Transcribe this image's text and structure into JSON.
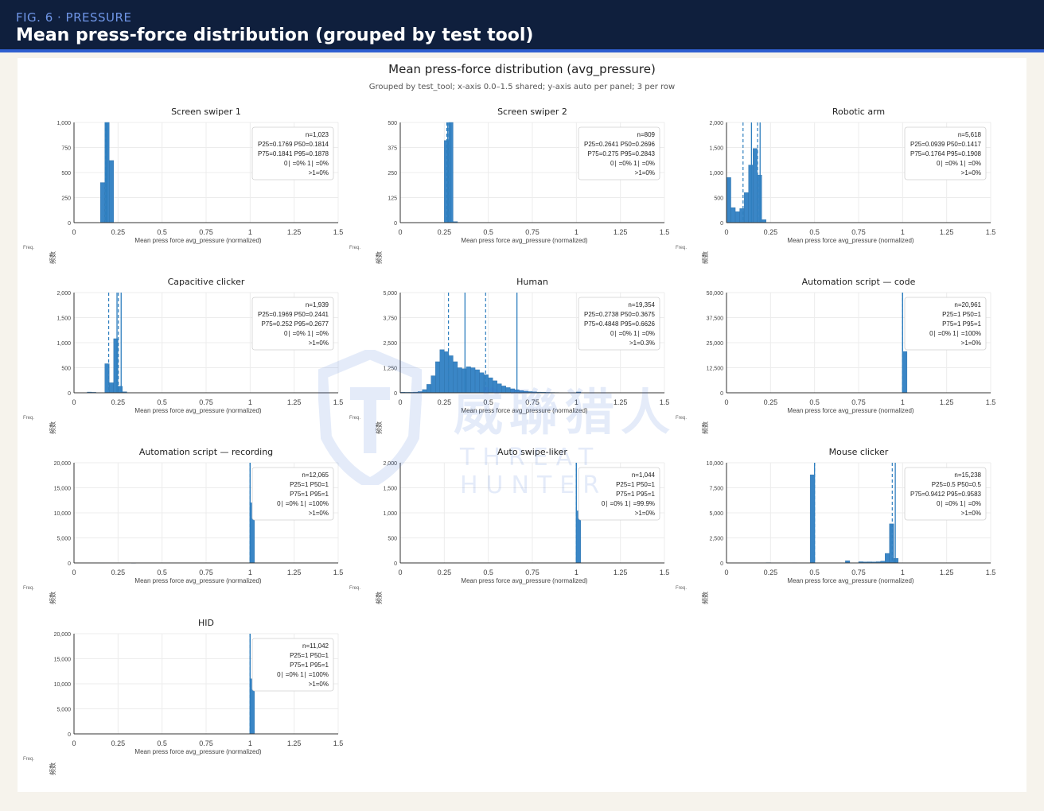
{
  "header": {
    "fig_label": "FIG. 6 · PRESSURE",
    "title": "Mean press-force distribution (grouped by test tool)"
  },
  "chart_title": "Mean press-force distribution (avg_pressure)",
  "chart_subtitle": "Grouped by test_tool; x-axis 0.0–1.5 shared; y-axis auto per panel; 3 per row",
  "watermark": {
    "cn": "威聯猎人",
    "en": "THREAT HUNTER"
  },
  "colors": {
    "bar": "#3a86c6",
    "bar_stroke": "#2a6ea8",
    "quantile_line": "#2f7fbf",
    "header_bg": "#0f1f3d",
    "accent": "#2f5fd0"
  },
  "chart_data": [
    {
      "type": "bar",
      "title": "Screen swiper 1",
      "xlabel": "Mean press force avg_pressure (normalized)",
      "ylabel": "频数",
      "ylabel_en": "Freq.",
      "xlim": [
        0,
        1.5
      ],
      "ylim": [
        0,
        1000
      ],
      "yticks": [
        "0",
        "250",
        "500",
        "750",
        "1,000"
      ],
      "xticks": [
        "0",
        "0.25",
        "0.5",
        "0.75",
        "1",
        "1.25",
        "1.5"
      ],
      "bin_width": 0.025,
      "bins": [
        [
          0.15,
          400
        ],
        [
          0.175,
          1000
        ],
        [
          0.2,
          620
        ]
      ],
      "dashed_lines": [
        0.1769,
        0.1841
      ],
      "solid_lines": [
        0.1814,
        0.1878
      ],
      "stats": [
        "n=1,023",
        "P25=0.1769  P50=0.1814",
        "P75=0.1841  P95=0.1878",
        "0∣  =0%  1∣  =0%",
        ">1=0%"
      ]
    },
    {
      "type": "bar",
      "title": "Screen swiper 2",
      "xlabel": "Mean press force avg_pressure (normalized)",
      "ylabel": "频数",
      "ylabel_en": "Freq.",
      "xlim": [
        0,
        1.5
      ],
      "ylim": [
        0,
        500
      ],
      "yticks": [
        "0",
        "125",
        "250",
        "375",
        "500"
      ],
      "xticks": [
        "0",
        "0.25",
        "0.5",
        "0.75",
        "1",
        "1.25",
        "1.5"
      ],
      "bin_width": 0.025,
      "bins": [
        [
          0.25,
          410
        ],
        [
          0.275,
          500
        ],
        [
          0.3,
          5
        ]
      ],
      "dashed_lines": [
        0.2641,
        0.275
      ],
      "solid_lines": [
        0.2696,
        0.2843
      ],
      "stats": [
        "n=809",
        "P25=0.2641  P50=0.2696",
        "P75=0.275  P95=0.2843",
        "0∣  =0%  1∣  =0%",
        ">1=0%"
      ]
    },
    {
      "type": "bar",
      "title": "Robotic arm",
      "xlabel": "Mean press force avg_pressure (normalized)",
      "ylabel": "频数",
      "ylabel_en": "Freq.",
      "xlim": [
        0,
        1.5
      ],
      "ylim": [
        0,
        2000
      ],
      "yticks": [
        "0",
        "500",
        "1,000",
        "1,500",
        "2,000"
      ],
      "xticks": [
        "0",
        "0.25",
        "0.5",
        "0.75",
        "1",
        "1.25",
        "1.5"
      ],
      "bin_width": 0.025,
      "bins": [
        [
          0,
          900
        ],
        [
          0.025,
          300
        ],
        [
          0.05,
          220
        ],
        [
          0.075,
          280
        ],
        [
          0.1,
          600
        ],
        [
          0.125,
          1150
        ],
        [
          0.15,
          1480
        ],
        [
          0.175,
          950
        ],
        [
          0.2,
          60
        ]
      ],
      "dashed_lines": [
        0.0939,
        0.1764
      ],
      "solid_lines": [
        0.1417,
        0.1908
      ],
      "stats": [
        "n=5,618",
        "P25=0.0939  P50=0.1417",
        "P75=0.1764  P95=0.1908",
        "0∣  =0%  1∣  =0%",
        ">1=0%"
      ]
    },
    {
      "type": "bar",
      "title": "Capacitive clicker",
      "xlabel": "Mean press force avg_pressure (normalized)",
      "ylabel": "频数",
      "ylabel_en": "Freq.",
      "xlim": [
        0,
        1.5
      ],
      "ylim": [
        0,
        2000
      ],
      "yticks": [
        "0",
        "500",
        "1,000",
        "1,500",
        "2,000"
      ],
      "xticks": [
        "0",
        "0.25",
        "0.5",
        "0.75",
        "1",
        "1.25",
        "1.5"
      ],
      "bin_width": 0.025,
      "bins": [
        [
          0.075,
          15
        ],
        [
          0.1,
          10
        ],
        [
          0.175,
          580
        ],
        [
          0.2,
          200
        ],
        [
          0.225,
          1080
        ],
        [
          0.25,
          130
        ],
        [
          0.275,
          20
        ]
      ],
      "dashed_lines": [
        0.1969,
        0.252
      ],
      "solid_lines": [
        0.2441,
        0.2677
      ],
      "stats": [
        "n=1,939",
        "P25=0.1969  P50=0.2441",
        "P75=0.252  P95=0.2677",
        "0∣  =0%  1∣  =0%",
        ">1=0%"
      ]
    },
    {
      "type": "bar",
      "title": "Human",
      "xlabel": "Mean press force avg_pressure (normalized)",
      "ylabel": "频数",
      "ylabel_en": "Freq.",
      "xlim": [
        0,
        1.5
      ],
      "ylim": [
        0,
        5000
      ],
      "yticks": [
        "0",
        "1,250",
        "2,500",
        "3,750",
        "5,000"
      ],
      "xticks": [
        "0",
        "0.25",
        "0.5",
        "0.75",
        "1",
        "1.25",
        "1.5"
      ],
      "bin_width": 0.025,
      "bins": [
        [
          0,
          30
        ],
        [
          0.025,
          25
        ],
        [
          0.05,
          25
        ],
        [
          0.075,
          35
        ],
        [
          0.1,
          60
        ],
        [
          0.125,
          160
        ],
        [
          0.15,
          420
        ],
        [
          0.175,
          850
        ],
        [
          0.2,
          1550
        ],
        [
          0.225,
          2150
        ],
        [
          0.25,
          2050
        ],
        [
          0.275,
          1850
        ],
        [
          0.3,
          1550
        ],
        [
          0.325,
          1250
        ],
        [
          0.35,
          1200
        ],
        [
          0.375,
          1300
        ],
        [
          0.4,
          1250
        ],
        [
          0.425,
          1150
        ],
        [
          0.45,
          1000
        ],
        [
          0.475,
          900
        ],
        [
          0.5,
          750
        ],
        [
          0.525,
          600
        ],
        [
          0.55,
          450
        ],
        [
          0.575,
          340
        ],
        [
          0.6,
          260
        ],
        [
          0.625,
          200
        ],
        [
          0.65,
          150
        ],
        [
          0.675,
          110
        ],
        [
          0.7,
          80
        ],
        [
          0.725,
          60
        ],
        [
          0.75,
          45
        ],
        [
          0.775,
          35
        ],
        [
          0.8,
          28
        ],
        [
          0.825,
          22
        ],
        [
          0.85,
          18
        ],
        [
          0.875,
          15
        ],
        [
          0.9,
          12
        ],
        [
          0.925,
          10
        ],
        [
          0.95,
          8
        ],
        [
          0.975,
          8
        ],
        [
          1.0,
          40
        ]
      ],
      "dashed_lines": [
        0.2738,
        0.4848
      ],
      "solid_lines": [
        0.3675,
        0.6626
      ],
      "stats": [
        "n=19,354",
        "P25=0.2738  P50=0.3675",
        "P75=0.4848  P95=0.6626",
        "0∣  =0%  1∣  =0%",
        ">1=0.3%"
      ]
    },
    {
      "type": "bar",
      "title": "Automation script — code",
      "xlabel": "Mean press force avg_pressure (normalized)",
      "ylabel": "频数",
      "ylabel_en": "Freq.",
      "xlim": [
        0,
        1.5
      ],
      "ylim": [
        0,
        50000
      ],
      "yticks": [
        "0",
        "12,500",
        "25,000",
        "37,500",
        "50,000"
      ],
      "xticks": [
        "0",
        "0.25",
        "0.5",
        "0.75",
        "1",
        "1.25",
        "1.5"
      ],
      "bin_width": 0.025,
      "bins": [
        [
          0.125,
          120
        ],
        [
          1.0,
          20600
        ]
      ],
      "dashed_lines": [
        1,
        1
      ],
      "solid_lines": [
        1,
        1
      ],
      "stats": [
        "n=20,961",
        "P25=1  P50=1",
        "P75=1  P95=1",
        "0∣  =0%  1∣  =100%",
        ">1=0%"
      ]
    },
    {
      "type": "bar",
      "title": "Automation script — recording",
      "xlabel": "Mean press force avg_pressure (normalized)",
      "ylabel": "频数",
      "ylabel_en": "Freq.",
      "xlim": [
        0,
        1.5
      ],
      "ylim": [
        0,
        20000
      ],
      "yticks": [
        "0",
        "5,000",
        "10,000",
        "15,000",
        "20,000"
      ],
      "xticks": [
        "0",
        "0.25",
        "0.5",
        "0.75",
        "1",
        "1.25",
        "1.5"
      ],
      "bin_width": 0.025,
      "bins": [
        [
          0.15,
          30
        ],
        [
          0.325,
          20
        ],
        [
          1.0,
          12000
        ]
      ],
      "dashed_lines": [
        1,
        1
      ],
      "solid_lines": [
        1,
        1
      ],
      "stats": [
        "n=12,065",
        "P25=1  P50=1",
        "P75=1  P95=1",
        "0∣  =0%  1∣  =100%",
        ">1=0%"
      ]
    },
    {
      "type": "bar",
      "title": "Auto swipe-liker",
      "xlabel": "Mean press force avg_pressure (normalized)",
      "ylabel": "频数",
      "ylabel_en": "Freq.",
      "xlim": [
        0,
        1.5
      ],
      "ylim": [
        0,
        2000
      ],
      "yticks": [
        "0",
        "500",
        "1,000",
        "1,500",
        "2,000"
      ],
      "xticks": [
        "0",
        "0.25",
        "0.5",
        "0.75",
        "1",
        "1.25",
        "1.5"
      ],
      "bin_width": 0.025,
      "bins": [
        [
          0.225,
          3
        ],
        [
          1.0,
          1040
        ]
      ],
      "dashed_lines": [
        1,
        1
      ],
      "solid_lines": [
        1,
        1
      ],
      "stats": [
        "n=1,044",
        "P25=1  P50=1",
        "P75=1  P95=1",
        "0∣  =0%  1∣  =99.9%",
        ">1=0%"
      ]
    },
    {
      "type": "bar",
      "title": "Mouse clicker",
      "xlabel": "Mean press force avg_pressure (normalized)",
      "ylabel": "频数",
      "ylabel_en": "Freq.",
      "xlim": [
        0,
        1.5
      ],
      "ylim": [
        0,
        10000
      ],
      "yticks": [
        "0",
        "2,500",
        "5,000",
        "7,500",
        "10,000"
      ],
      "xticks": [
        "0",
        "0.25",
        "0.5",
        "0.75",
        "1",
        "1.25",
        "1.5"
      ],
      "bin_width": 0.025,
      "bins": [
        [
          0.225,
          30
        ],
        [
          0.375,
          25
        ],
        [
          0.475,
          8800
        ],
        [
          0.675,
          220
        ],
        [
          0.75,
          120
        ],
        [
          0.775,
          100
        ],
        [
          0.8,
          110
        ],
        [
          0.825,
          100
        ],
        [
          0.85,
          120
        ],
        [
          0.875,
          180
        ],
        [
          0.9,
          950
        ],
        [
          0.925,
          3900
        ],
        [
          0.95,
          450
        ]
      ],
      "dashed_lines": [
        0.5,
        0.9412
      ],
      "solid_lines": [
        0.5,
        0.9583
      ],
      "stats": [
        "n=15,238",
        "P25=0.5  P50=0.5",
        "P75=0.9412  P95=0.9583",
        "0∣  =0%  1∣  =0%",
        ">1=0%"
      ]
    },
    {
      "type": "bar",
      "title": "HID",
      "xlabel": "Mean press force avg_pressure (normalized)",
      "ylabel": "频数",
      "ylabel_en": "Freq.",
      "xlim": [
        0,
        1.5
      ],
      "ylim": [
        0,
        20000
      ],
      "yticks": [
        "0",
        "5,000",
        "10,000",
        "15,000",
        "20,000"
      ],
      "xticks": [
        "0",
        "0.25",
        "0.5",
        "0.75",
        "1",
        "1.25",
        "1.5"
      ],
      "bin_width": 0.025,
      "bins": [
        [
          1.0,
          11000
        ]
      ],
      "dashed_lines": [
        1,
        1
      ],
      "solid_lines": [
        1,
        1
      ],
      "stats": [
        "n=11,042",
        "P25=1  P50=1",
        "P75=1  P95=1",
        "0∣  =0%  1∣  =100%",
        ">1=0%"
      ]
    }
  ]
}
